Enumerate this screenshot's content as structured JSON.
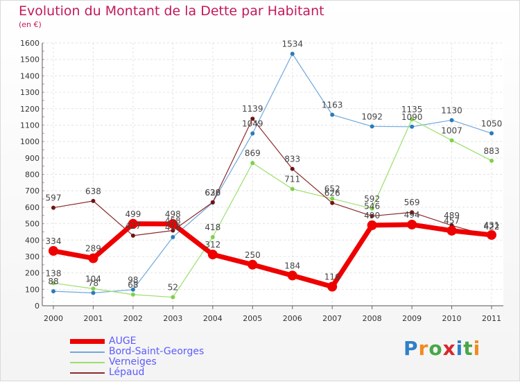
{
  "title": "Evolution du Montant de la Dette par Habitant",
  "subtitle": "(en €)",
  "logo": {
    "text": "Proxiti",
    "letter_colors": [
      "#2f80c8",
      "#f28a1e",
      "#49a647",
      "#d8262d",
      "#2f80c8",
      "#49a647",
      "#f28a1e"
    ]
  },
  "chart_data": {
    "type": "line",
    "x": [
      "2000",
      "2001",
      "2002",
      "2003",
      "2004",
      "2005",
      "2006",
      "2007",
      "2008",
      "2009",
      "2010",
      "2011"
    ],
    "ylim": [
      0,
      1600
    ],
    "yticks": [
      0,
      100,
      200,
      300,
      400,
      500,
      600,
      700,
      800,
      900,
      1000,
      1100,
      1200,
      1300,
      1400,
      1500,
      1600
    ],
    "grid": true,
    "legend_position": "bottom-left",
    "series": [
      {
        "name": "Bord-Saint-Georges",
        "color": "#6fa8dc",
        "marker": "#2b7bb9",
        "line_width": 1.2,
        "marker_r": 3,
        "values": [
          88,
          78,
          98,
          418,
          628,
          1049,
          1534,
          1163,
          1092,
          1090,
          1130,
          1050
        ]
      },
      {
        "name": "Verneiges",
        "color": "#9adf6b",
        "marker": "#7fd14a",
        "line_width": 1.2,
        "marker_r": 3,
        "values": [
          138,
          104,
          68,
          52,
          418,
          869,
          711,
          652,
          592,
          1135,
          1007,
          883
        ]
      },
      {
        "name": "Lépaud",
        "color": "#8b2a2a",
        "marker": "#6e1414",
        "line_width": 1.2,
        "marker_r": 3,
        "values": [
          597,
          638,
          427,
          458,
          630,
          1139,
          833,
          626,
          546,
          569,
          489,
          422
        ]
      },
      {
        "name": "AUGE",
        "color": "#ee0000",
        "marker": "#ee0000",
        "line_width": 7,
        "marker_r": 7,
        "values": [
          334,
          289,
          499,
          498,
          312,
          250,
          184,
          116,
          490,
          494,
          457,
          431
        ]
      }
    ],
    "legend_order": [
      "AUGE",
      "Bord-Saint-Georges",
      "Verneiges",
      "Lépaud"
    ]
  }
}
